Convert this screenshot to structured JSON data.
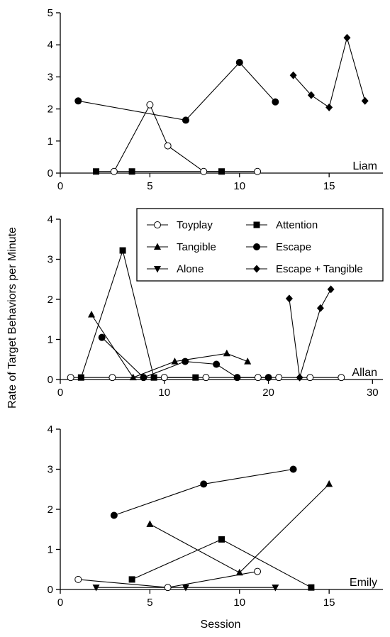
{
  "figure": {
    "ylabel": "Rate of Target Behaviors per Minute",
    "xlabel": "Session"
  },
  "legend": {
    "items": [
      {
        "label": "Toyplay",
        "marker": "circle-open"
      },
      {
        "label": "Attention",
        "marker": "square"
      },
      {
        "label": "Tangible",
        "marker": "triangle-up"
      },
      {
        "label": "Escape",
        "marker": "circle"
      },
      {
        "label": "Alone",
        "marker": "triangle-down"
      },
      {
        "label": "Escape + Tangible",
        "marker": "diamond"
      }
    ]
  },
  "chart_data": [
    {
      "type": "line",
      "panel_label": "Liam",
      "xlim": [
        0,
        18
      ],
      "ylim": [
        0,
        5
      ],
      "xticks": [
        0,
        5,
        10,
        15
      ],
      "yticks": [
        0,
        1,
        2,
        3,
        4,
        5
      ],
      "series": [
        {
          "name": "Escape",
          "marker": "circle",
          "points": [
            [
              1,
              2.25
            ],
            [
              7,
              1.65
            ],
            [
              10,
              3.45
            ],
            [
              12,
              2.22
            ]
          ]
        },
        {
          "name": "Toyplay",
          "marker": "circle-open",
          "points": [
            [
              3,
              0.05
            ],
            [
              5,
              2.13
            ],
            [
              6,
              0.85
            ],
            [
              8,
              0.05
            ],
            [
              11,
              0.05
            ]
          ]
        },
        {
          "name": "Attention",
          "marker": "square",
          "points": [
            [
              2,
              0.05
            ],
            [
              4,
              0.05
            ],
            [
              9,
              0.05
            ]
          ]
        },
        {
          "name": "Escape + Tangible",
          "marker": "diamond",
          "points": [
            [
              13,
              3.05
            ],
            [
              14,
              2.43
            ],
            [
              15,
              2.05
            ],
            [
              16,
              4.22
            ],
            [
              17,
              2.25
            ]
          ]
        }
      ]
    },
    {
      "type": "line",
      "panel_label": "Allan",
      "xlim": [
        0,
        31
      ],
      "ylim": [
        0,
        4
      ],
      "xticks": [
        0,
        10,
        20,
        30
      ],
      "yticks": [
        0,
        1,
        2,
        3,
        4
      ],
      "series": [
        {
          "name": "Toyplay",
          "marker": "circle-open",
          "points": [
            [
              1,
              0.05
            ],
            [
              5,
              0.05
            ],
            [
              10,
              0.05
            ],
            [
              14,
              0.05
            ],
            [
              19,
              0.05
            ],
            [
              21,
              0.05
            ],
            [
              24,
              0.05
            ],
            [
              27,
              0.05
            ]
          ]
        },
        {
          "name": "Attention",
          "marker": "square",
          "points": [
            [
              2,
              0.05
            ],
            [
              6,
              3.22
            ],
            [
              9,
              0.05
            ],
            [
              13,
              0.05
            ]
          ]
        },
        {
          "name": "Tangible",
          "marker": "triangle-up",
          "points": [
            [
              3,
              1.62
            ],
            [
              7,
              0.05
            ],
            [
              11,
              0.45
            ],
            [
              16,
              0.65
            ],
            [
              18,
              0.45
            ]
          ]
        },
        {
          "name": "Escape",
          "marker": "circle",
          "points": [
            [
              4,
              1.05
            ],
            [
              8,
              0.05
            ],
            [
              12,
              0.45
            ],
            [
              15,
              0.38
            ],
            [
              17,
              0.05
            ],
            [
              20,
              0.05
            ]
          ]
        },
        {
          "name": "Escape + Tangible",
          "marker": "diamond",
          "points": [
            [
              22,
              2.02
            ],
            [
              23,
              0.05
            ],
            [
              25,
              1.78
            ],
            [
              26,
              2.25
            ]
          ]
        }
      ]
    },
    {
      "type": "line",
      "panel_label": "Emily",
      "xlim": [
        0,
        18
      ],
      "ylim": [
        0,
        4
      ],
      "xticks": [
        0,
        5,
        10,
        15
      ],
      "yticks": [
        0,
        1,
        2,
        3,
        4
      ],
      "series": [
        {
          "name": "Toyplay",
          "marker": "circle-open",
          "points": [
            [
              1,
              0.25
            ],
            [
              6,
              0.05
            ],
            [
              11,
              0.45
            ]
          ]
        },
        {
          "name": "Alone",
          "marker": "triangle-down",
          "points": [
            [
              2,
              0.05
            ],
            [
              7,
              0.05
            ],
            [
              12,
              0.05
            ]
          ]
        },
        {
          "name": "Escape",
          "marker": "circle",
          "points": [
            [
              3,
              1.85
            ],
            [
              8,
              2.63
            ],
            [
              13,
              3.0
            ]
          ]
        },
        {
          "name": "Attention",
          "marker": "square",
          "points": [
            [
              4,
              0.25
            ],
            [
              9,
              1.25
            ],
            [
              14,
              0.05
            ]
          ]
        },
        {
          "name": "Tangible",
          "marker": "triangle-up",
          "points": [
            [
              5,
              1.63
            ],
            [
              10,
              0.42
            ],
            [
              15,
              2.63
            ]
          ]
        }
      ]
    }
  ]
}
